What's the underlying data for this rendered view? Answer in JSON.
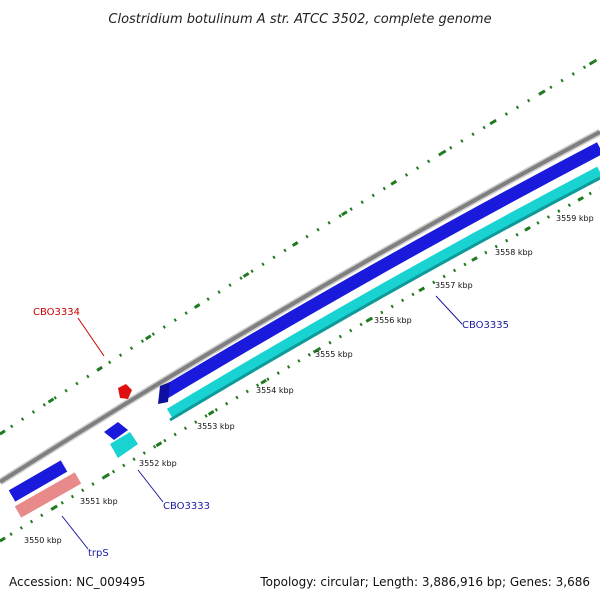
{
  "title": "Clostridium botulinum A str. ATCC 3502, complete genome",
  "footer": {
    "accession": "Accession: NC_009495",
    "topology": "Topology: circular; Length: 3,886,916 bp; Genes: 3,686"
  },
  "colors": {
    "backbone": "#8a8a8a",
    "forward_cds": "#1a1adc",
    "reverse_cds": "#19d2d2",
    "rna": "#e98a8a",
    "highlight": "#e01010",
    "tick": "#1f7a1f",
    "label_red": "#cc0000",
    "label_blue": "#1a1aa0"
  },
  "ticks": [
    {
      "label": "3550 kbp"
    },
    {
      "label": "3551 kbp"
    },
    {
      "label": "3552 kbp"
    },
    {
      "label": "3553 kbp"
    },
    {
      "label": "3554 kbp"
    },
    {
      "label": "3555 kbp"
    },
    {
      "label": "3556 kbp"
    },
    {
      "label": "3557 kbp"
    },
    {
      "label": "3558 kbp"
    },
    {
      "label": "3559 kbp"
    }
  ],
  "gene_labels": [
    {
      "name": "CBO3334",
      "color": "red"
    },
    {
      "name": "CBO3335",
      "color": "blue"
    },
    {
      "name": "CBO3333",
      "color": "blue"
    },
    {
      "name": "trpS",
      "color": "blue"
    }
  ]
}
